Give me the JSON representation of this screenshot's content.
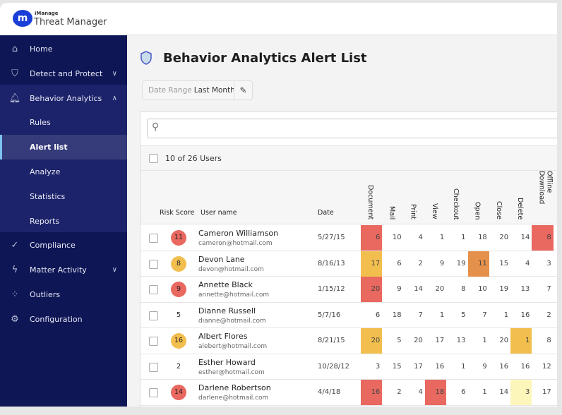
{
  "app": {
    "brand_small": "iManage",
    "brand": "Threat Manager",
    "logo_letter": "m"
  },
  "sidebar": {
    "items": [
      {
        "label": "Home",
        "icon": "home-icon",
        "glyph": "⌂"
      },
      {
        "label": "Detect and Protect",
        "icon": "shield-icon",
        "glyph": "⛉",
        "chevron": "∨"
      },
      {
        "label": "Behavior Analytics",
        "icon": "bell-icon",
        "glyph": "🔔︎",
        "chevron": "∧"
      },
      {
        "label": "Rules",
        "child": true
      },
      {
        "label": "Alert list",
        "child": true,
        "selected": true
      },
      {
        "label": "Analyze",
        "child": true
      },
      {
        "label": "Statistics",
        "child": true
      },
      {
        "label": "Reports",
        "child": true
      },
      {
        "label": "Compliance",
        "icon": "check-icon",
        "glyph": "✓"
      },
      {
        "label": "Matter Activity",
        "icon": "lightning-icon",
        "glyph": "ϟ",
        "chevron": "∨"
      },
      {
        "label": "Outliers",
        "icon": "scatter-icon",
        "glyph": "⁘"
      },
      {
        "label": "Configuration",
        "icon": "gear-icon",
        "glyph": "⚙"
      }
    ]
  },
  "page": {
    "title": "Behavior Analytics Alert List",
    "date_range_label": "Date Range",
    "date_range_value": "Last Month",
    "count": "10 of 26 Users",
    "search_placeholder": ""
  },
  "colors": {
    "red": "#e9685f",
    "yellow": "#f2bf4f",
    "orange": "#e5904b",
    "light_yellow": "#fdf6ba"
  },
  "table": {
    "headers": {
      "risk": "Risk Score",
      "user": "User name",
      "date": "Date"
    },
    "metrics": [
      "Document",
      "Mail",
      "Print",
      "View",
      "Checkout",
      "Open",
      "Close",
      "Delete",
      "Offline Download"
    ],
    "rows": [
      {
        "risk": "11",
        "risk_color": "red",
        "name": "Cameron Williamson",
        "email": "cameron@hotmail.com",
        "date": "5/27/15",
        "values": [
          6,
          10,
          4,
          1,
          1,
          18,
          20,
          14,
          8
        ],
        "highlights": {
          "0": "red",
          "8": "red"
        }
      },
      {
        "risk": "8",
        "risk_color": "yellow",
        "name": "Devon Lane",
        "email": "devon@hotmail.com",
        "date": "8/16/13",
        "values": [
          17,
          6,
          2,
          9,
          19,
          11,
          15,
          4,
          3
        ],
        "highlights": {
          "0": "yellow",
          "5": "orange"
        }
      },
      {
        "risk": "9",
        "risk_color": "red",
        "name": "Annette Black",
        "email": "annette@hotmail.com",
        "date": "1/15/12",
        "values": [
          20,
          9,
          14,
          20,
          8,
          10,
          19,
          13,
          7
        ],
        "highlights": {
          "0": "red"
        }
      },
      {
        "risk": "5",
        "risk_color": "",
        "name": "Dianne Russell",
        "email": "dianne@hotmail.com",
        "date": "5/7/16",
        "values": [
          6,
          18,
          7,
          1,
          5,
          7,
          1,
          16,
          2
        ],
        "highlights": {}
      },
      {
        "risk": "16",
        "risk_color": "yellow",
        "name": "Albert Flores",
        "email": "alebert@hotmail.com",
        "date": "8/21/15",
        "values": [
          20,
          5,
          20,
          17,
          13,
          1,
          20,
          1,
          8
        ],
        "highlights": {
          "0": "yellow",
          "7": "yellow"
        }
      },
      {
        "risk": "2",
        "risk_color": "",
        "name": "Esther Howard",
        "email": "esther@hotmail.com",
        "date": "10/28/12",
        "values": [
          3,
          15,
          17,
          16,
          1,
          9,
          16,
          16,
          12
        ],
        "highlights": {}
      },
      {
        "risk": "14",
        "risk_color": "red",
        "name": "Darlene Robertson",
        "email": "darlene@hotmail.com",
        "date": "4/4/18",
        "values": [
          16,
          2,
          4,
          18,
          6,
          1,
          14,
          3,
          17
        ],
        "highlights": {
          "0": "red",
          "3": "red",
          "7": "light_yellow"
        }
      }
    ]
  }
}
